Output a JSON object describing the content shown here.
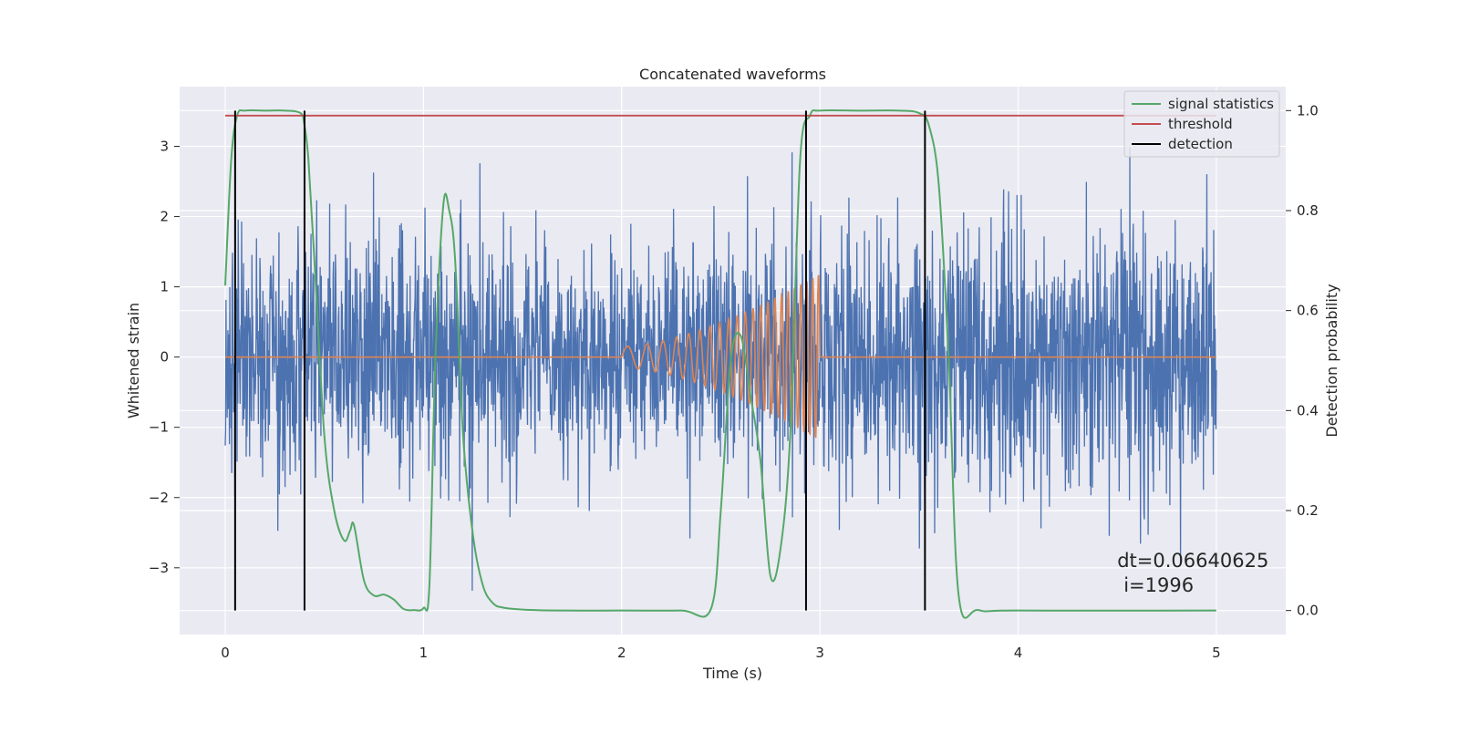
{
  "chart_data": {
    "type": "line",
    "title": "Concatenated waveforms",
    "xlabel": "Time (s)",
    "ylabel": "Whitened strain",
    "y2label": "Detection probability",
    "xlim": [
      -0.23,
      5.35
    ],
    "ylim": [
      -3.95,
      3.85
    ],
    "y2lim": [
      -0.048,
      1.048
    ],
    "xticks": [
      0,
      1,
      2,
      3,
      4,
      5
    ],
    "xtick_labels": [
      "0",
      "1",
      "2",
      "3",
      "4",
      "5"
    ],
    "yticks": [
      -3,
      -2,
      -1,
      0,
      1,
      2,
      3
    ],
    "ytick_labels": [
      "−3",
      "−2",
      "−1",
      "0",
      "1",
      "2",
      "3"
    ],
    "y2ticks": [
      0.0,
      0.2,
      0.4,
      0.6,
      0.8,
      1.0
    ],
    "y2tick_labels": [
      "0.0",
      "0.2",
      "0.4",
      "0.6",
      "0.8",
      "1.0"
    ],
    "grid": true,
    "legend_position": "top-right",
    "series": [
      {
        "name": "",
        "axis": "left",
        "kind": "noise",
        "color": "#4c72b0",
        "x_range": [
          0,
          5
        ],
        "envelope": [
          [
            0,
            1.5
          ],
          [
            1,
            1.5
          ],
          [
            2,
            1.25
          ],
          [
            3,
            1.4
          ],
          [
            4,
            1.55
          ],
          [
            5,
            1.55
          ]
        ]
      },
      {
        "name": "",
        "axis": "left",
        "kind": "chirp",
        "color": "#dd8452",
        "x_range": [
          0,
          5
        ],
        "chirp_start": 2.0,
        "chirp_end": 3.0,
        "amplitude_start": 0.15,
        "amplitude_end": 1.2,
        "freq_start": 8,
        "freq_end": 35
      },
      {
        "name": "signal statistics",
        "axis": "right",
        "color": "#55a868",
        "x": [
          0.0,
          0.03,
          0.06,
          0.1,
          0.2,
          0.3,
          0.38,
          0.4,
          0.42,
          0.45,
          0.5,
          0.55,
          0.6,
          0.63,
          0.65,
          0.7,
          0.75,
          0.8,
          0.85,
          0.9,
          0.95,
          1.0,
          1.03,
          1.06,
          1.1,
          1.13,
          1.16,
          1.2,
          1.25,
          1.3,
          1.35,
          1.4,
          1.5,
          1.7,
          2.0,
          2.3,
          2.45,
          2.5,
          2.55,
          2.6,
          2.65,
          2.7,
          2.75,
          2.8,
          2.85,
          2.9,
          2.95,
          3.0,
          3.2,
          3.4,
          3.5,
          3.55,
          3.6,
          3.65,
          3.7,
          3.8,
          4.0,
          5.0
        ],
        "y": [
          0.65,
          0.9,
          0.99,
          1.0,
          1.0,
          1.0,
          0.995,
          0.97,
          0.9,
          0.7,
          0.35,
          0.2,
          0.14,
          0.16,
          0.17,
          0.06,
          0.03,
          0.032,
          0.022,
          0.003,
          0.001,
          0.005,
          0.05,
          0.5,
          0.81,
          0.8,
          0.7,
          0.35,
          0.15,
          0.05,
          0.015,
          0.006,
          0.002,
          0.0,
          0.0,
          0.0,
          0.003,
          0.2,
          0.5,
          0.55,
          0.43,
          0.3,
          0.07,
          0.12,
          0.35,
          0.9,
          0.99,
          1.0,
          1.0,
          1.0,
          0.995,
          0.97,
          0.85,
          0.5,
          0.03,
          0.001,
          0.0,
          0.0
        ]
      },
      {
        "name": "threshold",
        "axis": "right",
        "color": "#c44e52",
        "x": [
          0,
          5
        ],
        "y": [
          0.99,
          0.99
        ]
      },
      {
        "name": "detection",
        "axis": "right",
        "color": "#000000",
        "vlines": [
          0.05,
          0.4,
          2.93,
          3.53
        ],
        "y_range": [
          0.0,
          1.0
        ]
      }
    ],
    "annotation": {
      "line1": "dt=0.06640625",
      "line2": "i=1996",
      "x": 4.5,
      "y": -2.9
    }
  }
}
